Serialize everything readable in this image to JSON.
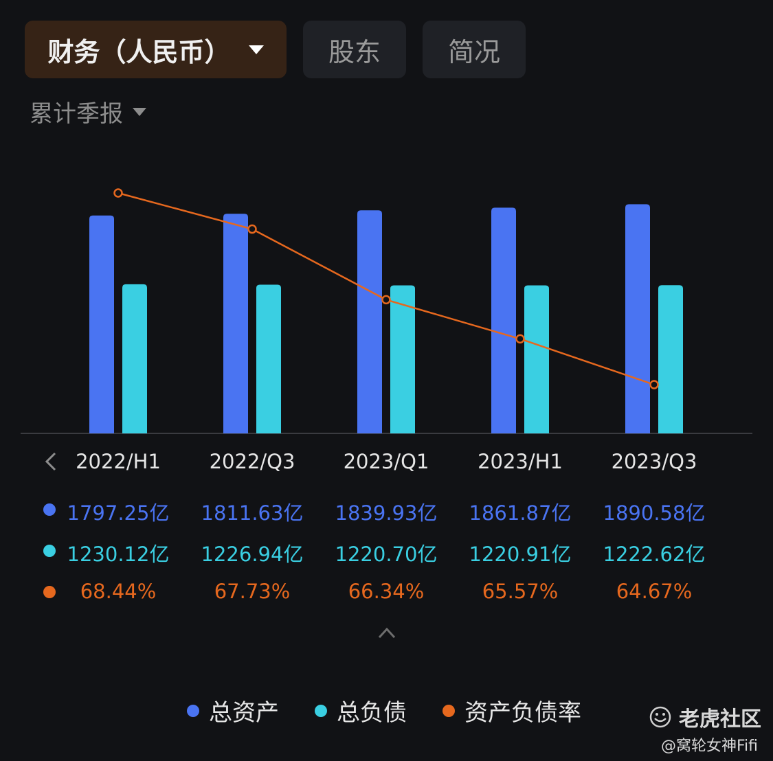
{
  "tabs": {
    "finance": "财务（人民币）",
    "holders": "股东",
    "brief": "简况"
  },
  "period_selector": "累计季报",
  "colors": {
    "total_assets": "#4A74F2",
    "total_liabilities": "#3ACFE2",
    "debt_ratio": "#E6681E",
    "axis": "#3a3b40"
  },
  "chart_data": {
    "type": "bar",
    "categories": [
      "2022/H1",
      "2022/Q3",
      "2023/Q1",
      "2023/H1",
      "2023/Q3"
    ],
    "series": [
      {
        "name": "总资产",
        "type": "bar",
        "values": [
          1797.25,
          1811.63,
          1839.93,
          1861.87,
          1890.58
        ],
        "labels": [
          "1797.25亿",
          "1811.63亿",
          "1839.93亿",
          "1861.87亿",
          "1890.58亿"
        ]
      },
      {
        "name": "总负债",
        "type": "bar",
        "values": [
          1230.12,
          1226.94,
          1220.7,
          1220.91,
          1222.62
        ],
        "labels": [
          "1230.12亿",
          "1226.94亿",
          "1220.70亿",
          "1220.91亿",
          "1222.62亿"
        ]
      },
      {
        "name": "资产负债率",
        "type": "line",
        "values": [
          68.44,
          67.73,
          66.34,
          65.57,
          64.67
        ],
        "labels": [
          "68.44%",
          "67.73%",
          "66.34%",
          "65.57%",
          "64.67%"
        ]
      }
    ],
    "bar_ylim": [
      0,
      2000
    ],
    "line_ylim": [
      64,
      69
    ],
    "grid": false,
    "legend_position": "bottom"
  },
  "legend": [
    "总资产",
    "总负债",
    "资产负债率"
  ],
  "icons": {
    "prev": "chevron-left-icon",
    "collapse": "chevron-up-icon",
    "dropdown": "caret-down-icon",
    "watermark": "tiger-logo-icon"
  },
  "watermark": {
    "brand": "老虎社区",
    "user": "@窝轮女神Fifi"
  }
}
